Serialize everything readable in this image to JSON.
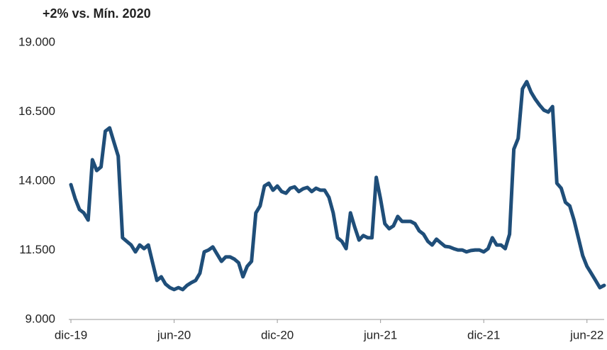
{
  "chart_data": {
    "type": "line",
    "title": "+2% vs. Mín. 2020",
    "categories": [
      "dic-19",
      null,
      null,
      null,
      null,
      null,
      null,
      null,
      null,
      null,
      null,
      null,
      null,
      null,
      null,
      null,
      null,
      null,
      null,
      null,
      null,
      null,
      null,
      null,
      "jun-20",
      null,
      null,
      null,
      null,
      null,
      null,
      null,
      null,
      null,
      null,
      null,
      null,
      null,
      null,
      null,
      null,
      null,
      null,
      null,
      null,
      null,
      null,
      null,
      "dic-20",
      null,
      null,
      null,
      null,
      null,
      null,
      null,
      null,
      null,
      null,
      null,
      null,
      null,
      null,
      null,
      null,
      null,
      null,
      null,
      null,
      null,
      null,
      null,
      "jun-21",
      null,
      null,
      null,
      null,
      null,
      null,
      null,
      null,
      null,
      null,
      null,
      null,
      null,
      null,
      null,
      null,
      null,
      null,
      null,
      null,
      null,
      null,
      null,
      "dic-21",
      null,
      null,
      null,
      null,
      null,
      null,
      null,
      null,
      null,
      null,
      null,
      null,
      null,
      null,
      null,
      null,
      null,
      null,
      null,
      null,
      null,
      null,
      null,
      "jun-22",
      null,
      null,
      null,
      null
    ],
    "values": [
      13870,
      13360,
      12970,
      12850,
      12590,
      14770,
      14380,
      14510,
      15800,
      15920,
      15410,
      14900,
      11950,
      11820,
      11690,
      11440,
      11690,
      11560,
      11690,
      11050,
      10410,
      10540,
      10280,
      10150,
      10080,
      10150,
      10080,
      10230,
      10330,
      10410,
      10670,
      11440,
      11510,
      11620,
      11360,
      11100,
      11260,
      11260,
      11180,
      11050,
      10540,
      10920,
      11100,
      12850,
      13100,
      13820,
      13920,
      13670,
      13820,
      13620,
      13560,
      13740,
      13790,
      13620,
      13720,
      13770,
      13620,
      13740,
      13670,
      13670,
      13410,
      12850,
      11950,
      11820,
      11560,
      12850,
      12330,
      11870,
      12030,
      11950,
      11950,
      14130,
      13360,
      12460,
      12280,
      12380,
      12720,
      12540,
      12540,
      12540,
      12460,
      12200,
      12080,
      11820,
      11690,
      11900,
      11770,
      11640,
      11620,
      11560,
      11510,
      11510,
      11440,
      11490,
      11510,
      11510,
      11440,
      11560,
      11950,
      11690,
      11690,
      11560,
      12080,
      15150,
      15540,
      17330,
      17590,
      17210,
      16950,
      16740,
      16560,
      16490,
      16690,
      13920,
      13740,
      13230,
      13100,
      12590,
      11950,
      11310,
      10920,
      10670,
      10410,
      10150,
      10230
    ],
    "color": "#1f4e79",
    "ylim": [
      9000,
      19000
    ],
    "yticks": [
      {
        "value": 9000,
        "label": "9.000"
      },
      {
        "value": 11500,
        "label": "11.500"
      },
      {
        "value": 14000,
        "label": "14.000"
      },
      {
        "value": 16500,
        "label": "16.500"
      },
      {
        "value": 19000,
        "label": "19.000"
      }
    ]
  }
}
